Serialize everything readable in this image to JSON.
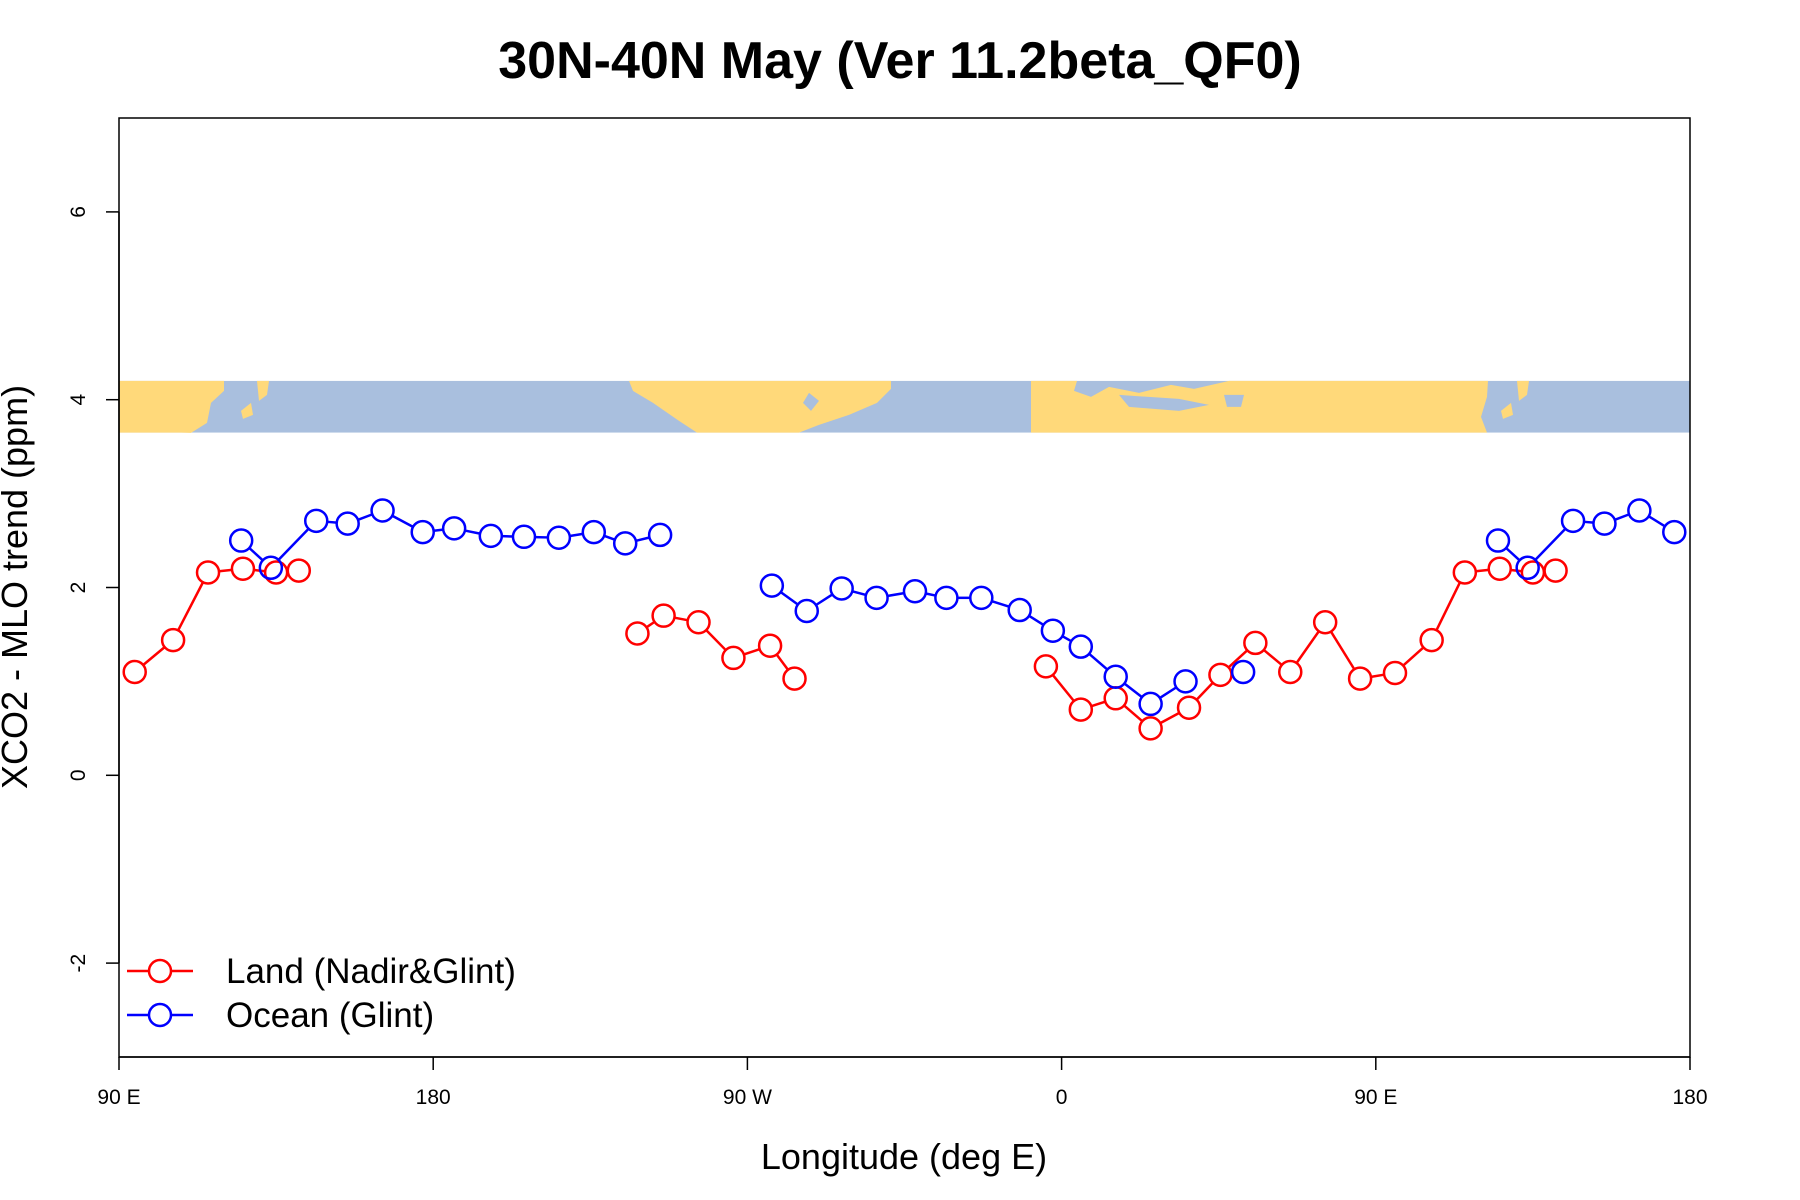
{
  "chart_data": {
    "type": "line",
    "title": "30N-40N May (Ver 11.2beta_QF0)",
    "xlabel": "Longitude (deg E)",
    "ylabel": "XCO2 - MLO trend (ppm)",
    "xlim": [
      90,
      540
    ],
    "ylim": [
      -3,
      7
    ],
    "x_ticks": [
      {
        "value": 90,
        "label": "90 E"
      },
      {
        "value": 180,
        "label": "180"
      },
      {
        "value": 270,
        "label": "90 W"
      },
      {
        "value": 360,
        "label": "0"
      },
      {
        "value": 450,
        "label": "90 E"
      },
      {
        "value": 540,
        "label": "180"
      }
    ],
    "y_ticks": [
      {
        "value": -2,
        "label": "-2"
      },
      {
        "value": 0,
        "label": "0"
      },
      {
        "value": 2,
        "label": "2"
      },
      {
        "value": 4,
        "label": "4"
      },
      {
        "value": 6,
        "label": "6"
      }
    ],
    "map_strip": {
      "y_range": [
        3.65,
        4.2
      ],
      "land_color": "#FFD97A",
      "ocean_color": "#A9BFDE"
    },
    "grid": false,
    "legend_position": "bottom-left",
    "series": [
      {
        "name": "Land (Nadir&Glint)",
        "color": "#FF0000",
        "segments": [
          [
            [
              94.5,
              1.1
            ],
            [
              105.5,
              1.44
            ],
            [
              115.5,
              2.16
            ],
            [
              125.5,
              2.2
            ],
            [
              135,
              2.16
            ],
            [
              141.5,
              2.18
            ]
          ],
          [
            [
              238.5,
              1.51
            ],
            [
              246,
              1.7
            ],
            [
              256,
              1.63
            ],
            [
              266,
              1.25
            ],
            [
              276.5,
              1.38
            ],
            [
              283.5,
              1.03
            ]
          ],
          [
            [
              355.5,
              1.16
            ],
            [
              365.5,
              0.7
            ],
            [
              375.5,
              0.82
            ],
            [
              385.5,
              0.5
            ],
            [
              396.5,
              0.72
            ],
            [
              405.5,
              1.07
            ],
            [
              415.5,
              1.41
            ],
            [
              425.5,
              1.1
            ],
            [
              435.5,
              1.63
            ],
            [
              445.5,
              1.03
            ],
            [
              455.5,
              1.09
            ],
            [
              466,
              1.44
            ],
            [
              475.5,
              2.16
            ],
            [
              485.5,
              2.2
            ],
            [
              495,
              2.16
            ],
            [
              501.5,
              2.18
            ]
          ]
        ]
      },
      {
        "name": "Ocean (Glint)",
        "color": "#0000FF",
        "segments": [
          [
            [
              125,
              2.5
            ],
            [
              133.5,
              2.21
            ],
            [
              146.5,
              2.71
            ],
            [
              155.5,
              2.68
            ],
            [
              165.5,
              2.82
            ],
            [
              177,
              2.59
            ],
            [
              186,
              2.63
            ],
            [
              196.5,
              2.55
            ],
            [
              206,
              2.54
            ],
            [
              216,
              2.53
            ],
            [
              226,
              2.59
            ],
            [
              235,
              2.47
            ],
            [
              245,
              2.56
            ]
          ],
          [
            [
              277,
              2.02
            ],
            [
              287,
              1.75
            ],
            [
              297,
              1.99
            ],
            [
              307,
              1.89
            ],
            [
              318,
              1.96
            ],
            [
              327,
              1.89
            ],
            [
              337,
              1.89
            ],
            [
              348,
              1.76
            ],
            [
              357.5,
              1.54
            ],
            [
              365.5,
              1.37
            ],
            [
              375.5,
              1.05
            ],
            [
              385.5,
              0.76
            ],
            [
              395.5,
              1.0
            ]
          ],
          [
            [
              412,
              1.1
            ]
          ],
          [
            [
              485,
              2.5
            ],
            [
              493.5,
              2.21
            ],
            [
              506.5,
              2.71
            ],
            [
              515.5,
              2.68
            ],
            [
              525.5,
              2.82
            ],
            [
              535.5,
              2.59
            ]
          ]
        ]
      }
    ]
  }
}
